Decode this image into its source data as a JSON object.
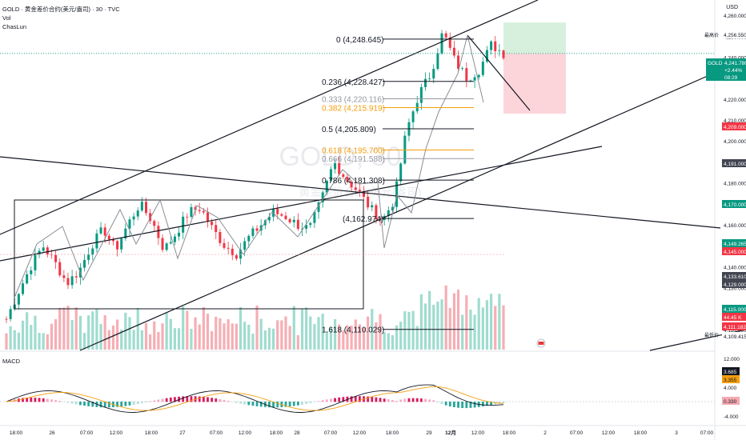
{
  "header": {
    "title": "GOLD · 黄金差价合约(美元/盎司) · 30 · TVC",
    "volume_label": "Vol",
    "indicator_label": "ChasLun",
    "macd_label": "MACD",
    "currency": "USD"
  },
  "watermark": {
    "symbol": "GOLD, 30",
    "name": "黄金差价合约(美元/盎司)"
  },
  "colors": {
    "up": "#089981",
    "down": "#f23645",
    "fib_orange": "#f59e0b",
    "fib_gray": "#9598a1",
    "macd_line": "#131722",
    "signal_line": "#f59e0b"
  },
  "chart_data": {
    "type": "candlestick",
    "timeframe": "30",
    "y_range": [
      4100,
      4265
    ],
    "price_ticks": [
      4260,
      4250,
      4240,
      4230,
      4220,
      4210,
      4200,
      4190,
      4180,
      4170,
      4160,
      4150,
      4140,
      4130,
      4120,
      4110
    ],
    "price_tick_labels": [
      "4,260.000",
      "4,250.000",
      "4,240.000",
      "4,230.000",
      "4,220.000",
      "4,210.000",
      "4,200.000",
      "4,190.000",
      "4,180.000",
      "4,170.000",
      "4,160.000",
      "4,150.000",
      "4,140.000",
      "4,130.000",
      "4,120.000",
      "4,110.000"
    ],
    "x_ticks": [
      "18:00",
      "26",
      "07:00",
      "12:00",
      "18:00",
      "27",
      "07:00",
      "12:00",
      "18:00",
      "28",
      "07:00",
      "12:00",
      "18:00",
      "29",
      "12月",
      "12:00",
      "18:00",
      "2",
      "07:00",
      "12:00",
      "18:00",
      "3",
      "07:00"
    ],
    "close_approx": [
      4115,
      4128,
      4140,
      4150,
      4142,
      4132,
      4138,
      4150,
      4158,
      4148,
      4160,
      4170,
      4162,
      4148,
      4156,
      4166,
      4168,
      4158,
      4150,
      4146,
      4154,
      4160,
      4166,
      4164,
      4160,
      4158,
      4172,
      4190,
      4182,
      4176,
      4168,
      4162,
      4172,
      4205,
      4222,
      4232,
      4252,
      4238,
      4230,
      4234,
      4246,
      4241.78
    ],
    "current_price": {
      "label": "GOLD",
      "value": "4,241.780",
      "change": "+2.44%",
      "countdown": "08:29"
    },
    "high_marker": {
      "label": "最高价",
      "value": "4,256.550"
    },
    "low_marker": {
      "label": "最低价",
      "value": "4,109.415"
    },
    "price_badges": [
      {
        "value": "4,209.000",
        "color": "#f23645"
      },
      {
        "value": "4,191.000",
        "color": "#434651"
      },
      {
        "value": "4,170.000",
        "color": "#089981"
      },
      {
        "value": "4,149.265",
        "color": "#089981"
      },
      {
        "value": "4,145.000",
        "color": "#f23645"
      },
      {
        "value": "4,133.610",
        "color": "#434651"
      },
      {
        "value": "4,129.000",
        "color": "#434651"
      },
      {
        "value": "4,115.000",
        "color": "#089981"
      },
      {
        "value": "44.45 K",
        "color": "#f23645"
      },
      {
        "value": "4,111.182",
        "color": "#f23645"
      }
    ],
    "fibonacci": [
      {
        "level": "0",
        "price": 4248.645,
        "label": "0 (4,248.645)",
        "color": "#131722"
      },
      {
        "level": "0.236",
        "price": 4228.427,
        "label": "0.236 (4,228.427)",
        "color": "#131722"
      },
      {
        "level": "0.333",
        "price": 4220.116,
        "label": "0.333 (4,220.116)",
        "color": "#9598a1"
      },
      {
        "level": "0.382",
        "price": 4215.919,
        "label": "0.382 (4,215.919)",
        "color": "#f59e0b"
      },
      {
        "level": "0.5",
        "price": 4205.809,
        "label": "0.5 (4,205.809)",
        "color": "#131722"
      },
      {
        "level": "0.618",
        "price": 4195.7,
        "label": "0.618 (4,195.700)",
        "color": "#f59e0b"
      },
      {
        "level": "0.666",
        "price": 4191.588,
        "label": "0.666 (4,191.588)",
        "color": "#9598a1"
      },
      {
        "level": "0.786",
        "price": 4181.308,
        "label": "0.786 (4,181.308)",
        "color": "#131722"
      },
      {
        "level": "1",
        "price": 4162.974,
        "label": "(4,162.974)",
        "color": "#131722"
      },
      {
        "level": "1.618",
        "price": 4110.029,
        "label": "1.618 (4,110.029)",
        "color": "#131722"
      }
    ],
    "macd": {
      "y_range": [
        -4,
        12
      ],
      "tick_labels": [
        "12.000",
        "8.000",
        "4.000",
        "0.000",
        "-4.000"
      ],
      "badges": [
        {
          "value": "3.685",
          "color": "#131722"
        },
        {
          "value": "3.355",
          "color": "#f59e0b"
        },
        {
          "value": "0.330",
          "color": "#f5a9b0"
        }
      ]
    }
  }
}
